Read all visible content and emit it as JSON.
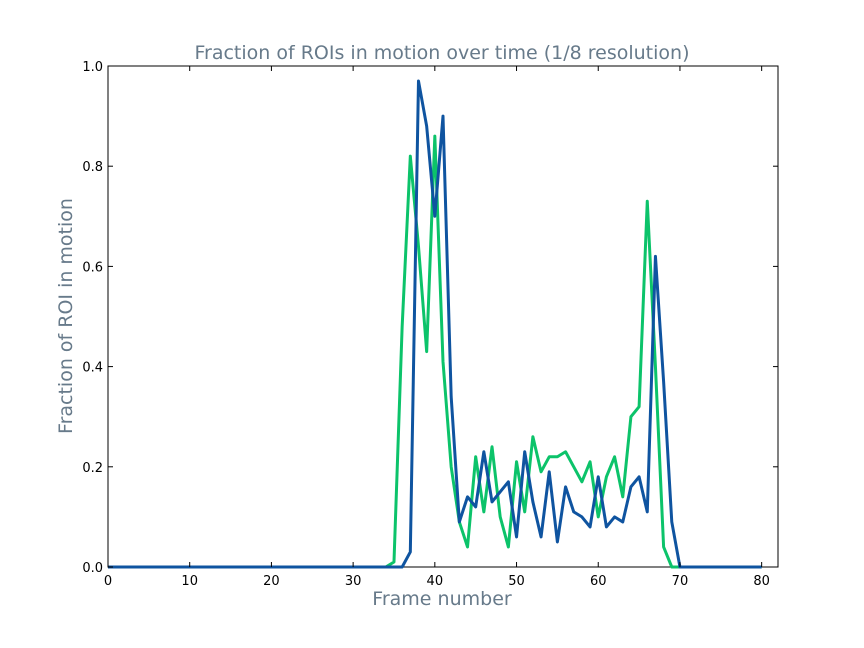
{
  "chart_data": {
    "type": "line",
    "title": "Fraction of ROIs in motion over time (1/8 resolution)",
    "xlabel": "Frame number",
    "ylabel": "Fraction of ROI in motion",
    "xlim": [
      0,
      82
    ],
    "ylim": [
      0,
      1.0
    ],
    "x_ticks": [
      0,
      10,
      20,
      30,
      40,
      50,
      60,
      70,
      80
    ],
    "x_tick_labels": [
      "0",
      "10",
      "20",
      "30",
      "40",
      "50",
      "60",
      "70",
      "80"
    ],
    "y_ticks": [
      0,
      0.2,
      0.4,
      0.6,
      0.8,
      1.0
    ],
    "y_tick_labels": [
      "0.0",
      "0.2",
      "0.4",
      "0.6",
      "0.8",
      "1.0"
    ],
    "grid": false,
    "legend": "none",
    "series": [
      {
        "color": "#0cc36a",
        "x": [
          0,
          1,
          2,
          3,
          4,
          5,
          6,
          7,
          8,
          9,
          10,
          11,
          12,
          13,
          14,
          15,
          16,
          17,
          18,
          19,
          20,
          21,
          22,
          23,
          24,
          25,
          26,
          27,
          28,
          29,
          30,
          31,
          32,
          33,
          34,
          35,
          36,
          37,
          38,
          39,
          40,
          41,
          42,
          43,
          44,
          45,
          46,
          47,
          48,
          49,
          50,
          51,
          52,
          53,
          54,
          55,
          56,
          57,
          58,
          59,
          60,
          61,
          62,
          63,
          64,
          65,
          66,
          67,
          68,
          69,
          70,
          71,
          72,
          73,
          74,
          75,
          76,
          77,
          78,
          79,
          80
        ],
        "values": [
          0,
          0,
          0,
          0,
          0,
          0,
          0,
          0,
          0,
          0,
          0,
          0,
          0,
          0,
          0,
          0,
          0,
          0,
          0,
          0,
          0,
          0,
          0,
          0,
          0,
          0,
          0,
          0,
          0,
          0,
          0,
          0,
          0,
          0,
          0,
          0.01,
          0.48,
          0.82,
          0.64,
          0.43,
          0.86,
          0.41,
          0.2,
          0.09,
          0.04,
          0.22,
          0.11,
          0.24,
          0.1,
          0.04,
          0.21,
          0.11,
          0.26,
          0.19,
          0.22,
          0.22,
          0.23,
          0.2,
          0.17,
          0.21,
          0.1,
          0.18,
          0.22,
          0.14,
          0.3,
          0.32,
          0.73,
          0.4,
          0.04,
          0,
          0,
          0,
          0,
          0,
          0,
          0,
          0,
          0,
          0,
          0,
          0
        ]
      },
      {
        "color": "#0f54a0",
        "x": [
          0,
          1,
          2,
          3,
          4,
          5,
          6,
          7,
          8,
          9,
          10,
          11,
          12,
          13,
          14,
          15,
          16,
          17,
          18,
          19,
          20,
          21,
          22,
          23,
          24,
          25,
          26,
          27,
          28,
          29,
          30,
          31,
          32,
          33,
          34,
          35,
          36,
          37,
          38,
          39,
          40,
          41,
          42,
          43,
          44,
          45,
          46,
          47,
          48,
          49,
          50,
          51,
          52,
          53,
          54,
          55,
          56,
          57,
          58,
          59,
          60,
          61,
          62,
          63,
          64,
          65,
          66,
          67,
          68,
          69,
          70,
          71,
          72,
          73,
          74,
          75,
          76,
          77,
          78,
          79,
          80
        ],
        "values": [
          0,
          0,
          0,
          0,
          0,
          0,
          0,
          0,
          0,
          0,
          0,
          0,
          0,
          0,
          0,
          0,
          0,
          0,
          0,
          0,
          0,
          0,
          0,
          0,
          0,
          0,
          0,
          0,
          0,
          0,
          0,
          0,
          0,
          0,
          0,
          0,
          0,
          0.03,
          0.97,
          0.88,
          0.7,
          0.9,
          0.34,
          0.09,
          0.14,
          0.12,
          0.23,
          0.13,
          0.15,
          0.17,
          0.06,
          0.23,
          0.13,
          0.06,
          0.19,
          0.05,
          0.16,
          0.11,
          0.1,
          0.08,
          0.18,
          0.08,
          0.1,
          0.09,
          0.16,
          0.18,
          0.11,
          0.62,
          0.37,
          0.09,
          0,
          0,
          0,
          0,
          0,
          0,
          0,
          0,
          0,
          0,
          0
        ]
      }
    ]
  }
}
